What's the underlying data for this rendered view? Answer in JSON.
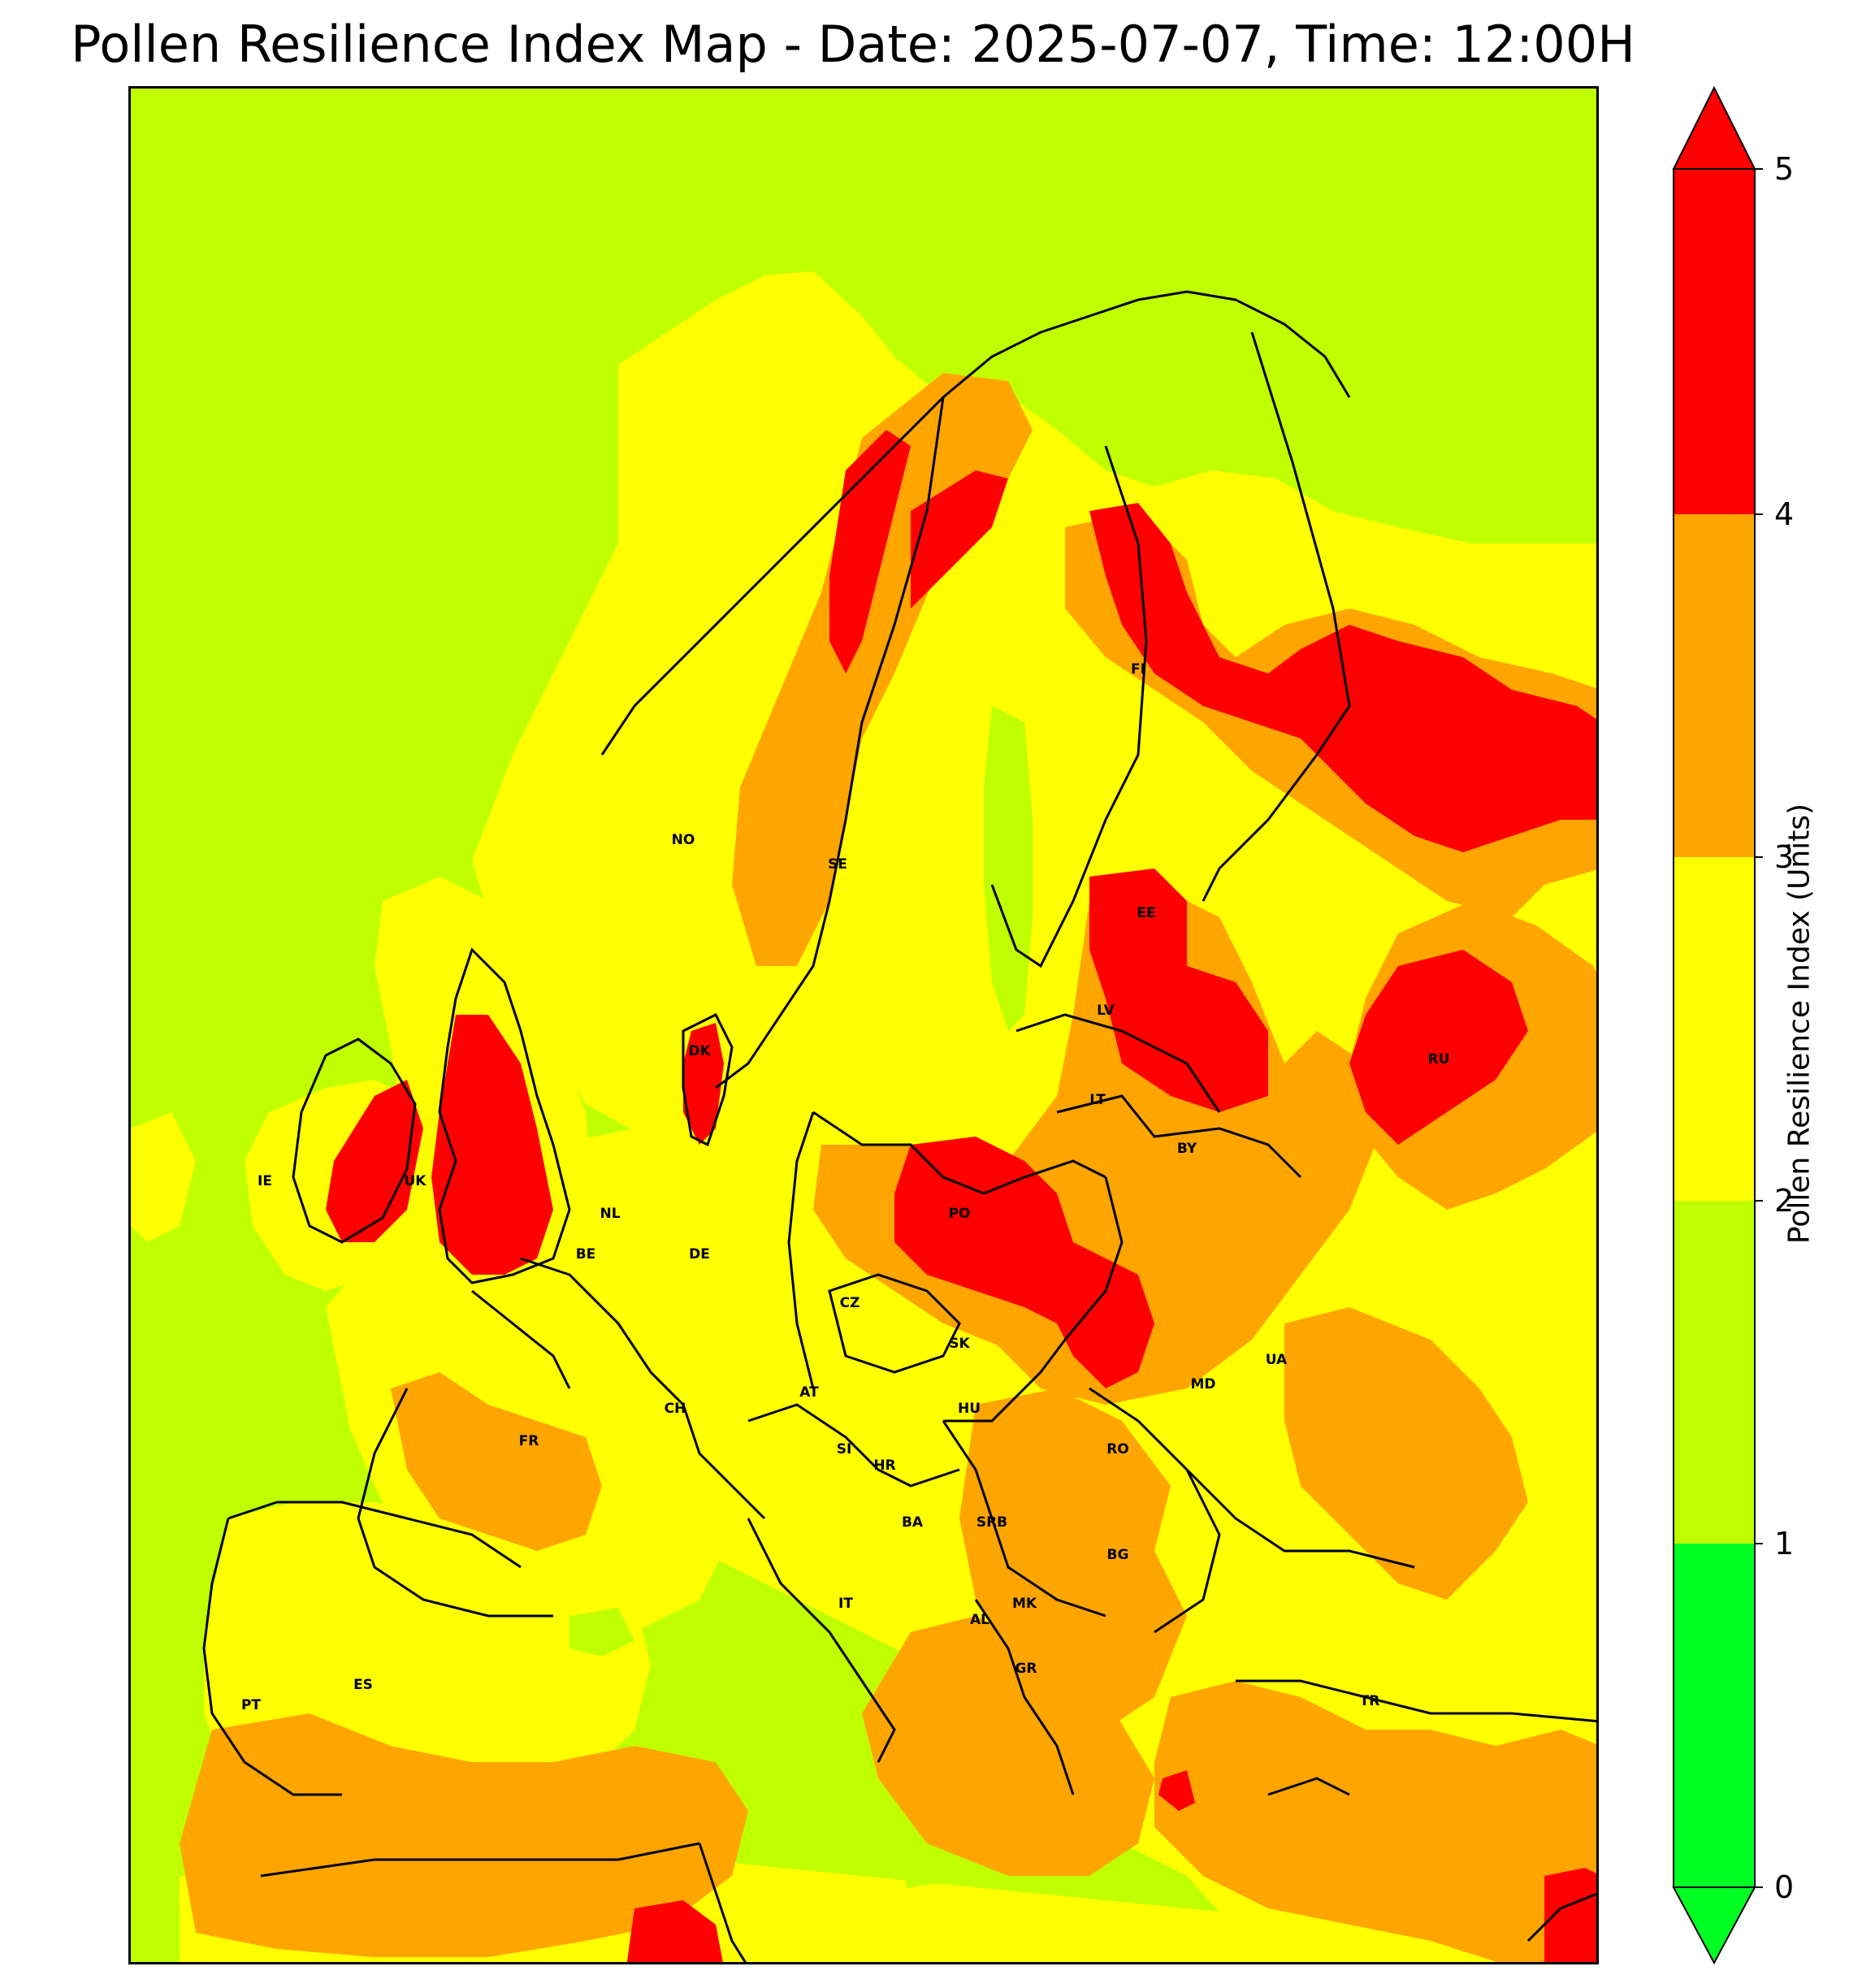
{
  "title": "Pollen Resilience Index Map - Date: 2025-07-07, Time: 12:00H",
  "colorbar": {
    "label": "Pollen Resilience Index (Units)",
    "ticks": [
      "0",
      "1",
      "2",
      "3",
      "4",
      "5"
    ],
    "bins": [
      {
        "range": [
          0,
          1
        ],
        "color": "#00ff22"
      },
      {
        "range": [
          1,
          2
        ],
        "color": "#bfff00"
      },
      {
        "range": [
          2,
          3
        ],
        "color": "#ffff00"
      },
      {
        "range": [
          3,
          4
        ],
        "color": "#ffa500"
      },
      {
        "range": [
          4,
          5
        ],
        "color": "#ff0000"
      }
    ],
    "extend": "both"
  },
  "countries": [
    {
      "code": "NO"
    },
    {
      "code": "SE"
    },
    {
      "code": "FI"
    },
    {
      "code": "EE"
    },
    {
      "code": "LV"
    },
    {
      "code": "LT"
    },
    {
      "code": "RU"
    },
    {
      "code": "BY"
    },
    {
      "code": "DK"
    },
    {
      "code": "IE"
    },
    {
      "code": "UK"
    },
    {
      "code": "NL"
    },
    {
      "code": "BE"
    },
    {
      "code": "DE"
    },
    {
      "code": "PO"
    },
    {
      "code": "CZ"
    },
    {
      "code": "SK"
    },
    {
      "code": "UA"
    },
    {
      "code": "MD"
    },
    {
      "code": "AT"
    },
    {
      "code": "CH"
    },
    {
      "code": "HU"
    },
    {
      "code": "FR"
    },
    {
      "code": "SI"
    },
    {
      "code": "HR"
    },
    {
      "code": "RO"
    },
    {
      "code": "BA"
    },
    {
      "code": "SRB"
    },
    {
      "code": "BG"
    },
    {
      "code": "IT"
    },
    {
      "code": "MK"
    },
    {
      "code": "AL"
    },
    {
      "code": "ES"
    },
    {
      "code": "GR"
    },
    {
      "code": "PT"
    },
    {
      "code": "TR"
    }
  ]
}
